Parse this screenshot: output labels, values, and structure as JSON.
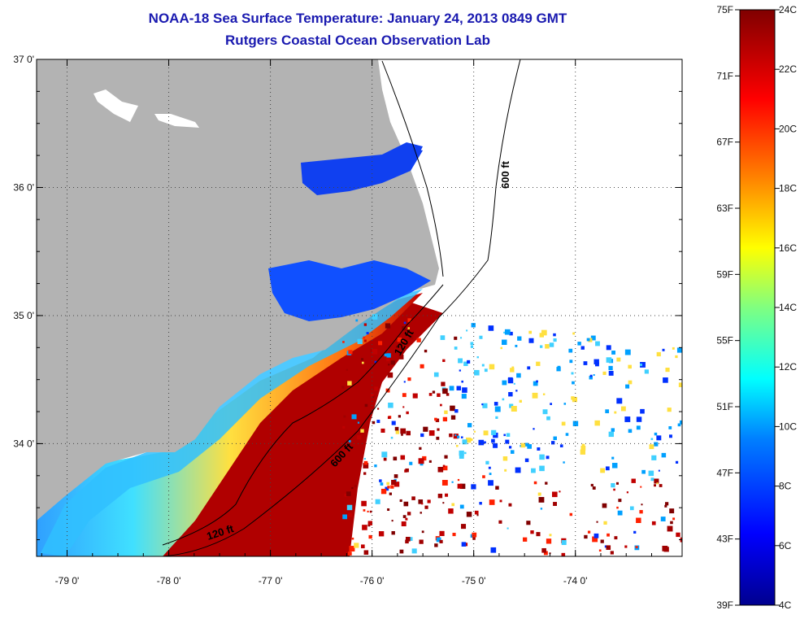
{
  "title": {
    "line1": "NOAA-18 Sea Surface Temperature:  January 24, 2013 0849 GMT",
    "line2": "Rutgers Coastal Ocean Observation Lab"
  },
  "axes": {
    "lon_labels": [
      "-79 0'",
      "-78 0'",
      "-77 0'",
      "-76 0'",
      "-75 0'",
      "-74 0'"
    ],
    "lon_values": [
      -79,
      -78,
      -77,
      -76,
      -75,
      -74
    ],
    "lat_labels": [
      "37 0'",
      "36 0'",
      "35 0'",
      "34 0'"
    ],
    "lat_values": [
      37,
      36,
      35,
      34
    ],
    "lon_range": [
      -79.3,
      -72.95
    ],
    "lat_range": [
      33.12,
      37.0
    ],
    "grid": "dotted"
  },
  "isobaths": {
    "label_600": "600 ft",
    "label_120": "120 ft"
  },
  "colorbar": {
    "fahrenheit_labels": [
      "75F",
      "71F",
      "67F",
      "63F",
      "59F",
      "55F",
      "51F",
      "47F",
      "43F",
      "39F"
    ],
    "celsius_labels": [
      "24C",
      "22C",
      "20C",
      "18C",
      "16C",
      "14C",
      "12C",
      "10C",
      "8C",
      "6C",
      "4C"
    ],
    "range_c": [
      4,
      24
    ],
    "range_f": [
      39,
      75
    ]
  },
  "colors": {
    "land": "#b3b3b3",
    "title": "#1a1ab0",
    "cold": "#00008f",
    "warm": "#800000"
  }
}
